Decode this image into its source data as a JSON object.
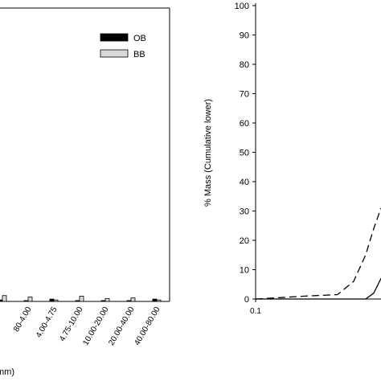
{
  "chart_data": [
    {
      "type": "bar",
      "x_label": "mm)",
      "categories": [
        null,
        "80-4.00",
        "4.00-4.75",
        "4.75-10.00",
        "10.00-20.00",
        "20.00-40.00",
        "40.00-80.00"
      ],
      "series": [
        {
          "name": "OB",
          "color": "#000000",
          "values": [
            0.5,
            0.3,
            0.8,
            0.3,
            0.3,
            0.3,
            0.8
          ]
        },
        {
          "name": "BB",
          "color": "#d9d9d9",
          "values": [
            2,
            1.5,
            0.5,
            1.8,
            1,
            1.2,
            0.5
          ]
        }
      ],
      "ylim": [
        0,
        100
      ]
    },
    {
      "type": "line",
      "y_label": "% Mass (Cumulative lower)",
      "x": [
        0.1,
        0.153,
        0.228,
        0.389,
        0.508,
        0.62,
        0.709,
        0.8
      ],
      "series": [
        {
          "color": "#000000",
          "dash": true,
          "values": [
            0,
            0.5,
            1,
            1.5,
            6,
            15,
            24,
            31
          ]
        },
        {
          "color": "#000000",
          "dash": false,
          "values": [
            0,
            0,
            0,
            0,
            0,
            0,
            2,
            7
          ]
        }
      ],
      "xlim": [
        0.1,
        0.8
      ],
      "xlog": true,
      "xticks": [
        0.1
      ],
      "ylim": [
        0,
        100
      ],
      "yticks": [
        0,
        10,
        20,
        30,
        40,
        50,
        60,
        70,
        80,
        90,
        100
      ]
    }
  ]
}
